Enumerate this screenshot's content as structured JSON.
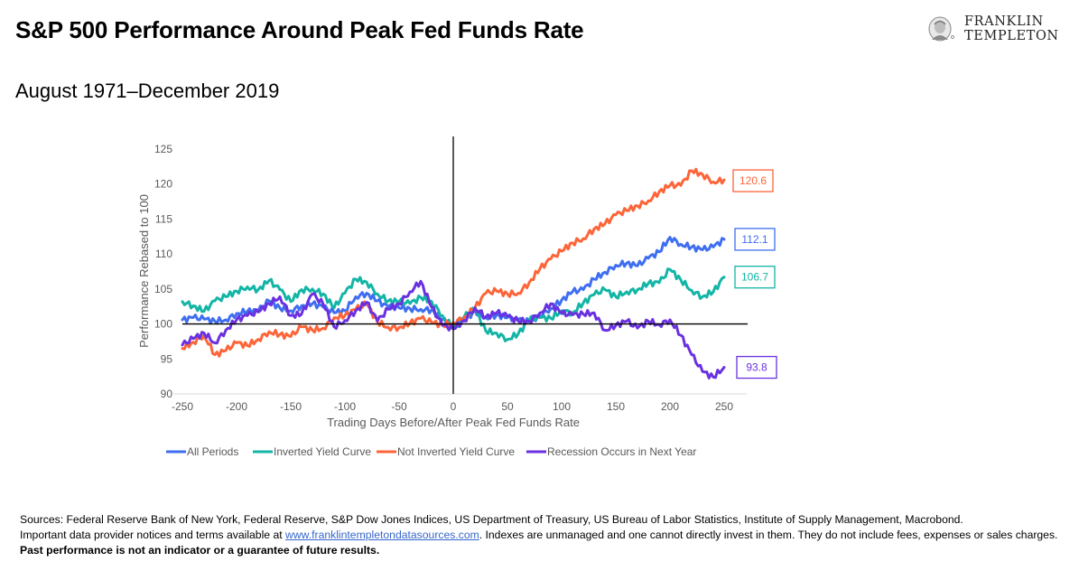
{
  "header": {
    "title": "S&P 500 Performance Around Peak Fed Funds Rate",
    "subtitle": "August 1971–December 2019"
  },
  "logo": {
    "line1": "FRANKLIN",
    "line2": "TEMPLETON",
    "icon": "benjamin-franklin-portrait-icon"
  },
  "chart_data": {
    "type": "line",
    "title": "S&P 500 Performance Around Peak Fed Funds Rate",
    "subtitle": "August 1971–December 2019",
    "xlabel": "Trading Days Before/After Peak Fed Funds Rate",
    "ylabel": "Performance Rebased to 100",
    "xlim": [
      -250,
      250
    ],
    "ylim": [
      90,
      125
    ],
    "xticks": [
      -250,
      -200,
      -150,
      -100,
      -50,
      0,
      50,
      100,
      150,
      200,
      250
    ],
    "yticks": [
      90,
      95,
      100,
      105,
      110,
      115,
      120,
      125
    ],
    "reference_lines": {
      "horizontal": 100,
      "vertical": 0
    },
    "grid": false,
    "legend_position": "bottom",
    "x": [
      -250,
      -240,
      -230,
      -220,
      -210,
      -200,
      -190,
      -180,
      -170,
      -160,
      -150,
      -140,
      -130,
      -120,
      -110,
      -100,
      -90,
      -80,
      -70,
      -60,
      -50,
      -40,
      -30,
      -20,
      -10,
      0,
      10,
      20,
      30,
      40,
      50,
      60,
      70,
      80,
      90,
      100,
      110,
      120,
      130,
      140,
      150,
      160,
      170,
      180,
      190,
      200,
      210,
      220,
      230,
      240,
      250
    ],
    "series": [
      {
        "name": "All Periods",
        "color": "#3f6ef0",
        "end_label": "112.1",
        "values": [
          100.6,
          100.9,
          100.7,
          100.4,
          100.6,
          101.5,
          101.8,
          101.9,
          103.3,
          102.3,
          101.9,
          102.6,
          102.9,
          102.4,
          101.6,
          101.9,
          103.9,
          104.4,
          103.3,
          102.4,
          102.3,
          102.2,
          102.1,
          102.0,
          100.6,
          99.4,
          100.4,
          101.9,
          100.9,
          101.3,
          100.9,
          100.6,
          100.3,
          101.2,
          102.2,
          103.4,
          104.6,
          104.9,
          106.4,
          107.4,
          108.4,
          108.7,
          108.3,
          109.4,
          110.3,
          112.4,
          111.4,
          111.0,
          110.6,
          111.0,
          112.1
        ]
      },
      {
        "name": "Inverted Yield Curve",
        "color": "#13b5a6",
        "end_label": "106.7",
        "values": [
          103.2,
          102.6,
          101.8,
          103.3,
          103.9,
          104.7,
          105.3,
          104.9,
          106.2,
          104.9,
          103.2,
          104.9,
          105.0,
          104.3,
          102.3,
          104.4,
          106.4,
          106.0,
          104.3,
          103.3,
          103.2,
          102.9,
          103.8,
          103.2,
          101.2,
          99.4,
          101.0,
          102.1,
          99.0,
          98.7,
          97.8,
          98.6,
          100.6,
          100.9,
          100.8,
          101.9,
          101.6,
          103.0,
          104.2,
          104.9,
          103.9,
          104.6,
          104.9,
          105.8,
          105.9,
          107.8,
          106.3,
          104.8,
          103.9,
          104.6,
          106.7
        ]
      },
      {
        "name": "Not Inverted Yield Curve",
        "color": "#fd6539",
        "end_label": "120.6",
        "values": [
          96.5,
          97.4,
          98.4,
          95.6,
          96.2,
          97.3,
          96.9,
          97.8,
          98.9,
          98.5,
          98.2,
          99.6,
          99.1,
          99.4,
          100.9,
          101.2,
          102.1,
          102.9,
          100.3,
          99.5,
          99.5,
          100.1,
          100.8,
          100.2,
          99.9,
          100.2,
          100.9,
          102.3,
          104.4,
          104.7,
          104.3,
          104.4,
          105.9,
          107.9,
          109.3,
          110.4,
          111.6,
          112.2,
          113.6,
          114.3,
          115.6,
          116.2,
          116.9,
          117.6,
          118.9,
          119.8,
          119.8,
          121.9,
          121.4,
          120.3,
          120.6
        ]
      },
      {
        "name": "Recession Occurs in Next Year",
        "color": "#6a31e0",
        "end_label": "93.8",
        "values": [
          97.0,
          97.9,
          98.7,
          97.3,
          99.1,
          100.6,
          101.2,
          101.7,
          102.9,
          103.9,
          101.2,
          101.4,
          104.3,
          102.8,
          99.6,
          100.5,
          101.9,
          103.1,
          100.4,
          102.1,
          102.9,
          104.6,
          106.1,
          102.4,
          99.8,
          99.3,
          100.5,
          102.3,
          101.0,
          101.6,
          101.1,
          100.4,
          100.4,
          101.6,
          102.9,
          101.5,
          101.3,
          101.4,
          101.6,
          99.1,
          99.8,
          100.4,
          99.4,
          100.4,
          99.9,
          100.6,
          98.4,
          95.6,
          93.2,
          92.4,
          93.8
        ]
      }
    ]
  },
  "legend": {
    "items": [
      {
        "label": "All Periods",
        "color": "#3f6ef0"
      },
      {
        "label": "Inverted Yield Curve",
        "color": "#13b5a6"
      },
      {
        "label": "Not Inverted Yield Curve",
        "color": "#fd6539"
      },
      {
        "label": "Recession Occurs in Next Year",
        "color": "#6a31e0"
      }
    ]
  },
  "footer": {
    "sources": "Sources: Federal Reserve Bank of New York, Federal Reserve, S&P Dow Jones Indices, US Department of Treasury, US Bureau of Labor Statistics, Institute of Supply Management, Macrobond.",
    "notice_prefix": "Important data provider notices and terms available at ",
    "link_text": "www.franklintempletondatasources.com",
    "notice_suffix": ". Indexes are unmanaged and one cannot directly invest in them. They do not include fees, expenses or sales charges. ",
    "disclaimer": "Past performance is not an indicator or a guarantee of future results."
  }
}
